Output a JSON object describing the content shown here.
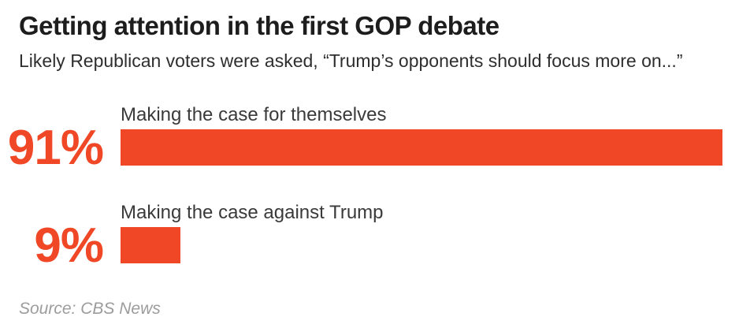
{
  "header": {
    "title": "Getting attention in the first GOP debate",
    "subtitle": "Likely Republican voters were asked, “Trump’s opponents should focus more on...”"
  },
  "chart_data": {
    "type": "bar",
    "orientation": "horizontal",
    "title": "Getting attention in the first GOP debate",
    "subtitle": "Likely Republican voters were asked, “Trump’s opponents should focus more on...”",
    "categories": [
      "Making the case for themselves",
      "Making the case against Trump"
    ],
    "values": [
      91,
      9
    ],
    "value_labels": [
      "91%",
      "9%"
    ],
    "xlabel": "",
    "ylabel": "",
    "xlim": [
      0,
      100
    ],
    "grid": false,
    "legend": false,
    "bar_color": "#F04826",
    "value_label_color": "#F04826"
  },
  "footer": {
    "source": "Source: CBS News"
  },
  "colors": {
    "accent": "#F04826",
    "title_text": "#1d1d1d",
    "body_text": "#3a3a3a",
    "source_text": "#9c9c9c",
    "background": "#ffffff"
  }
}
